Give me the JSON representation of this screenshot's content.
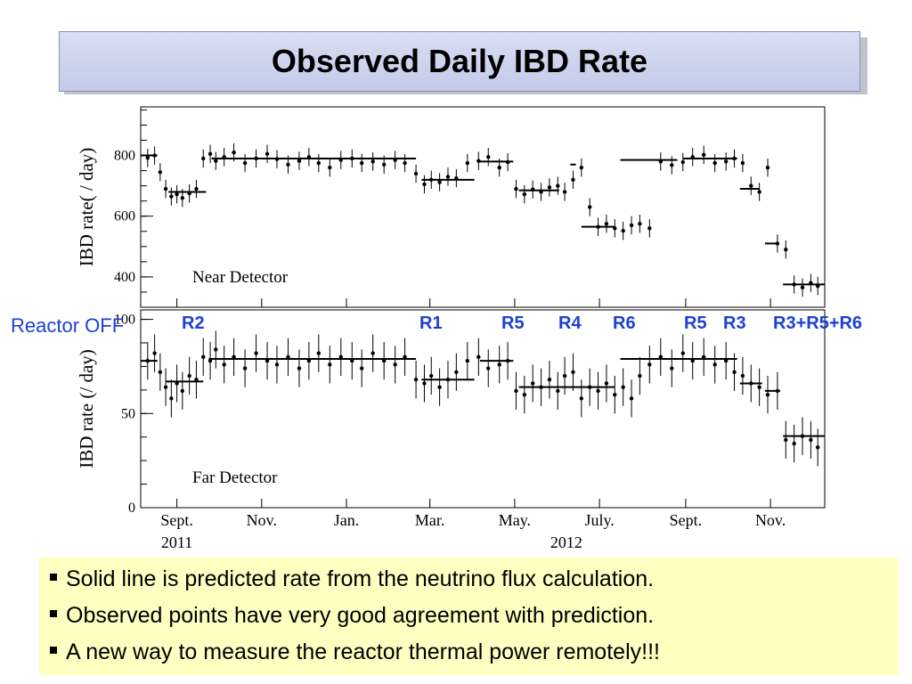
{
  "slide": {
    "title": "Observed Daily IBD Rate"
  },
  "reactor_labels": [
    "Reactor OFF",
    "R2",
    "R1",
    "R5",
    "R4",
    "R6",
    "R5",
    "R3",
    "R3+R5+R6"
  ],
  "bullets": [
    "Solid line is predicted rate from the neutrino flux calculation.",
    "Observed points have very good agreement with prediction.",
    "A new way to measure the reactor thermal power remotely!!!"
  ],
  "chart_data": [
    {
      "type": "scatter",
      "title": "Near Detector",
      "ylabel": "IBD rate( / day)",
      "ylim": [
        300,
        960
      ],
      "yticks": [
        400,
        600,
        800
      ],
      "xlim": [
        "2011-08-06",
        "2012-12-10"
      ],
      "x_tick_labels": [
        "Sept.",
        "Nov.",
        "Jan.",
        "Mar.",
        "May.",
        "July.",
        "Sept.",
        "Nov."
      ],
      "x_tick_dates": [
        "2011-09-01",
        "2011-11-01",
        "2012-01-01",
        "2012-03-01",
        "2012-05-01",
        "2012-07-01",
        "2012-09-01",
        "2012-11-01"
      ],
      "year_labels": [
        "2011",
        "2012"
      ],
      "error_bar": 30,
      "series": [
        {
          "x": [
            "2011-08-11",
            "2011-08-16",
            "2011-08-20",
            "2011-08-24",
            "2011-08-28",
            "2011-09-01",
            "2011-09-05",
            "2011-09-10",
            "2011-09-15",
            "2011-09-20",
            "2011-09-25",
            "2011-09-29",
            "2011-10-05",
            "2011-10-12",
            "2011-10-20",
            "2011-10-28",
            "2011-11-05",
            "2011-11-12",
            "2011-11-20",
            "2011-11-28",
            "2011-12-05",
            "2011-12-12",
            "2011-12-20",
            "2011-12-28",
            "2012-01-05",
            "2012-01-12",
            "2012-01-20",
            "2012-01-28",
            "2012-02-05",
            "2012-02-12",
            "2012-02-20",
            "2012-02-26",
            "2012-03-02",
            "2012-03-08",
            "2012-03-14",
            "2012-03-20",
            "2012-03-28",
            "2012-04-05",
            "2012-04-12",
            "2012-04-20",
            "2012-04-26",
            "2012-05-02",
            "2012-05-08",
            "2012-05-14",
            "2012-05-20",
            "2012-05-26",
            "2012-06-01",
            "2012-06-06",
            "2012-06-12",
            "2012-06-18",
            "2012-06-24",
            "2012-06-30",
            "2012-07-06",
            "2012-07-12",
            "2012-07-18",
            "2012-07-24",
            "2012-07-30",
            "2012-08-06",
            "2012-08-14",
            "2012-08-22",
            "2012-08-30",
            "2012-09-06",
            "2012-09-14",
            "2012-09-22",
            "2012-09-30",
            "2012-10-06",
            "2012-10-12",
            "2012-10-18",
            "2012-10-24",
            "2012-10-30",
            "2012-11-06",
            "2012-11-12",
            "2012-11-18",
            "2012-11-24",
            "2012-11-30",
            "2012-12-05"
          ],
          "values": [
            792,
            800,
            745,
            690,
            665,
            672,
            660,
            675,
            690,
            790,
            805,
            782,
            795,
            810,
            775,
            790,
            805,
            788,
            770,
            782,
            795,
            775,
            760,
            785,
            790,
            775,
            780,
            770,
            785,
            775,
            740,
            705,
            720,
            712,
            730,
            725,
            775,
            782,
            795,
            760,
            778,
            690,
            672,
            688,
            680,
            695,
            700,
            680,
            720,
            760,
            630,
            565,
            575,
            560,
            552,
            570,
            575,
            560,
            780,
            768,
            778,
            795,
            802,
            775,
            780,
            790,
            775,
            700,
            680,
            760,
            510,
            490,
            375,
            365,
            380,
            370
          ]
        }
      ],
      "prediction_steps": [
        {
          "x": [
            "2011-08-06",
            "2011-08-18"
          ],
          "y": 800
        },
        {
          "x": [
            "2011-08-26",
            "2011-09-22"
          ],
          "y": 680
        },
        {
          "x": [
            "2011-09-26",
            "2012-02-20"
          ],
          "y": 790
        },
        {
          "x": [
            "2012-02-24",
            "2012-04-02"
          ],
          "y": 720
        },
        {
          "x": [
            "2012-04-06",
            "2012-04-30"
          ],
          "y": 780
        },
        {
          "x": [
            "2012-05-04",
            "2012-06-02"
          ],
          "y": 685
        },
        {
          "x": [
            "2012-06-10",
            "2012-06-14"
          ],
          "y": 770
        },
        {
          "x": [
            "2012-06-18",
            "2012-07-12"
          ],
          "y": 565
        },
        {
          "x": [
            "2012-07-16",
            "2012-08-26"
          ],
          "y": 785
        },
        {
          "x": [
            "2012-08-30",
            "2012-10-08"
          ],
          "y": 790
        },
        {
          "x": [
            "2012-10-10",
            "2012-10-24"
          ],
          "y": 690
        },
        {
          "x": [
            "2012-10-28",
            "2012-11-06"
          ],
          "y": 510
        },
        {
          "x": [
            "2012-11-10",
            "2012-12-10"
          ],
          "y": 375
        }
      ]
    },
    {
      "type": "scatter",
      "title": "Far Detector",
      "ylabel": "IBD rate (/ day)",
      "ylim": [
        0,
        105
      ],
      "yticks": [
        0,
        50,
        100
      ],
      "xlim": [
        "2011-08-06",
        "2012-12-10"
      ],
      "x_tick_labels": [
        "Sept.",
        "Nov.",
        "Jan.",
        "Mar.",
        "May.",
        "July.",
        "Sept.",
        "Nov."
      ],
      "x_tick_dates": [
        "2011-09-01",
        "2011-11-01",
        "2012-01-01",
        "2012-03-01",
        "2012-05-01",
        "2012-07-01",
        "2012-09-01",
        "2012-11-01"
      ],
      "year_labels": [
        "2011",
        "2012"
      ],
      "error_bar": 10,
      "series": [
        {
          "x": [
            "2011-08-11",
            "2011-08-16",
            "2011-08-20",
            "2011-08-24",
            "2011-08-28",
            "2011-09-01",
            "2011-09-05",
            "2011-09-10",
            "2011-09-15",
            "2011-09-20",
            "2011-09-25",
            "2011-09-29",
            "2011-10-05",
            "2011-10-12",
            "2011-10-20",
            "2011-10-28",
            "2011-11-05",
            "2011-11-12",
            "2011-11-20",
            "2011-11-28",
            "2011-12-05",
            "2011-12-12",
            "2011-12-20",
            "2011-12-28",
            "2012-01-05",
            "2012-01-12",
            "2012-01-20",
            "2012-01-28",
            "2012-02-05",
            "2012-02-12",
            "2012-02-20",
            "2012-02-26",
            "2012-03-02",
            "2012-03-08",
            "2012-03-14",
            "2012-03-20",
            "2012-03-28",
            "2012-04-05",
            "2012-04-12",
            "2012-04-20",
            "2012-04-26",
            "2012-05-02",
            "2012-05-08",
            "2012-05-14",
            "2012-05-20",
            "2012-05-26",
            "2012-06-01",
            "2012-06-06",
            "2012-06-12",
            "2012-06-18",
            "2012-06-24",
            "2012-06-30",
            "2012-07-06",
            "2012-07-12",
            "2012-07-18",
            "2012-07-24",
            "2012-07-30",
            "2012-08-06",
            "2012-08-14",
            "2012-08-22",
            "2012-08-30",
            "2012-09-06",
            "2012-09-14",
            "2012-09-22",
            "2012-09-30",
            "2012-10-06",
            "2012-10-12",
            "2012-10-18",
            "2012-10-24",
            "2012-10-30",
            "2012-11-06",
            "2012-11-12",
            "2012-11-18",
            "2012-11-24",
            "2012-11-30",
            "2012-12-05"
          ],
          "values": [
            78,
            82,
            72,
            64,
            58,
            66,
            62,
            70,
            68,
            80,
            78,
            84,
            76,
            80,
            74,
            82,
            78,
            76,
            80,
            74,
            78,
            82,
            76,
            80,
            78,
            74,
            82,
            78,
            76,
            80,
            68,
            66,
            70,
            64,
            68,
            72,
            78,
            80,
            74,
            76,
            78,
            62,
            60,
            66,
            64,
            68,
            62,
            70,
            72,
            58,
            64,
            62,
            66,
            60,
            64,
            58,
            70,
            76,
            80,
            74,
            82,
            78,
            80,
            76,
            78,
            72,
            70,
            66,
            64,
            60,
            62,
            36,
            34,
            38,
            36,
            32
          ]
        }
      ],
      "prediction_steps": [
        {
          "x": [
            "2011-08-06",
            "2011-08-18"
          ],
          "y": 78
        },
        {
          "x": [
            "2011-08-24",
            "2011-09-20"
          ],
          "y": 67
        },
        {
          "x": [
            "2011-09-24",
            "2012-02-20"
          ],
          "y": 79
        },
        {
          "x": [
            "2012-02-24",
            "2012-04-02"
          ],
          "y": 68
        },
        {
          "x": [
            "2012-04-06",
            "2012-04-30"
          ],
          "y": 78
        },
        {
          "x": [
            "2012-05-04",
            "2012-07-12"
          ],
          "y": 64
        },
        {
          "x": [
            "2012-07-16",
            "2012-10-08"
          ],
          "y": 79
        },
        {
          "x": [
            "2012-10-10",
            "2012-10-26"
          ],
          "y": 66
        },
        {
          "x": [
            "2012-10-28",
            "2012-11-08"
          ],
          "y": 62
        },
        {
          "x": [
            "2012-11-10",
            "2012-12-10"
          ],
          "y": 38
        }
      ]
    }
  ]
}
